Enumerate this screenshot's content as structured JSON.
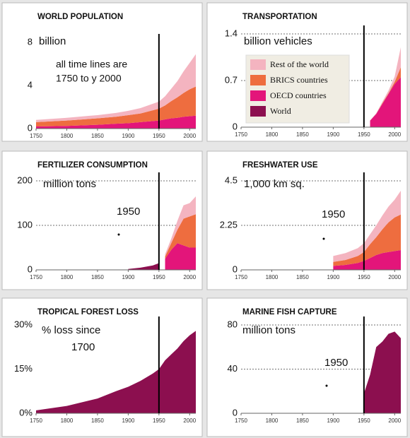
{
  "chart_data": [
    {
      "type": "area",
      "title": "WORLD POPULATION",
      "subtitle": [
        "billion"
      ],
      "annotations": [
        "all time lines are",
        "1750 to y 2000"
      ],
      "x": [
        1750,
        1800,
        1850,
        1880,
        1900,
        1920,
        1940,
        1950,
        1960,
        1970,
        1980,
        1990,
        2000,
        2010
      ],
      "series": [
        {
          "color": "#e3157a",
          "values": [
            0.2,
            0.25,
            0.35,
            0.45,
            0.5,
            0.6,
            0.7,
            0.75,
            0.85,
            0.95,
            1.0,
            1.1,
            1.15,
            1.2
          ]
        },
        {
          "color": "#ee6d3f",
          "values": [
            0.4,
            0.5,
            0.6,
            0.65,
            0.75,
            0.8,
            1.0,
            1.1,
            1.3,
            1.6,
            1.9,
            2.2,
            2.5,
            2.7
          ]
        },
        {
          "color": "#f4b4c0",
          "values": [
            0.2,
            0.25,
            0.3,
            0.35,
            0.4,
            0.5,
            0.6,
            0.65,
            0.85,
            1.15,
            1.5,
            2.0,
            2.45,
            3.0
          ]
        }
      ],
      "xlim": [
        1750,
        2010
      ],
      "xticks": [
        1750,
        1800,
        1850,
        1900,
        1950,
        2000
      ],
      "ylim": [
        0,
        8
      ],
      "yticks": [
        0,
        4,
        8
      ],
      "vline": 1950,
      "grid": false
    },
    {
      "type": "area",
      "title": "TRANSPORTATION",
      "subtitle": [
        "billion vehicles"
      ],
      "annotations": [],
      "x": [
        1750,
        1800,
        1850,
        1880,
        1900,
        1920,
        1940,
        1950,
        1960,
        1970,
        1980,
        1990,
        2000,
        2010
      ],
      "series": [
        {
          "name": "World",
          "color": "#8c0f4f",
          "values": [
            null,
            null,
            null,
            null,
            null,
            null,
            null,
            null,
            null,
            null,
            null,
            null,
            null,
            null
          ]
        },
        {
          "name": "OECD countries",
          "color": "#e3157a",
          "values": [
            null,
            null,
            null,
            null,
            null,
            null,
            null,
            null,
            0.1,
            0.2,
            0.35,
            0.5,
            0.65,
            0.75
          ]
        },
        {
          "name": "BRICS countries",
          "color": "#ee6d3f",
          "values": [
            null,
            null,
            null,
            null,
            null,
            null,
            null,
            null,
            0,
            0,
            0.01,
            0.01,
            0.03,
            0.15
          ]
        },
        {
          "name": "Rest of the world",
          "color": "#f4b4c0",
          "values": [
            null,
            null,
            null,
            null,
            null,
            null,
            null,
            null,
            0,
            0.01,
            0.02,
            0.04,
            0.08,
            0.3
          ]
        }
      ],
      "xlim": [
        1750,
        2010
      ],
      "xticks": [
        1750,
        1800,
        1850,
        1900,
        1950,
        2000
      ],
      "ylim": [
        0,
        1.4
      ],
      "yticks": [
        0,
        0.7,
        1.4
      ],
      "vline": 1950,
      "grid": true,
      "legend": "center"
    },
    {
      "type": "area",
      "title": "FERTILIZER CONSUMPTION",
      "subtitle": [
        "million tons"
      ],
      "annotations": [
        "1950"
      ],
      "x": [
        1750,
        1800,
        1850,
        1880,
        1900,
        1920,
        1940,
        1950,
        1960,
        1970,
        1980,
        1990,
        2000,
        2010
      ],
      "series": [
        {
          "color": "#8c0f4f",
          "values": [
            null,
            null,
            null,
            null,
            2,
            5,
            10,
            15,
            null,
            null,
            null,
            null,
            null,
            null
          ]
        },
        {
          "color": "#e3157a",
          "values": [
            null,
            null,
            null,
            null,
            null,
            null,
            null,
            null,
            25,
            45,
            60,
            55,
            50,
            50
          ]
        },
        {
          "color": "#ee6d3f",
          "values": [
            null,
            null,
            null,
            null,
            null,
            null,
            null,
            null,
            5,
            15,
            30,
            60,
            70,
            75
          ]
        },
        {
          "color": "#f4b4c0",
          "values": [
            null,
            null,
            null,
            null,
            null,
            null,
            null,
            null,
            5,
            10,
            20,
            30,
            30,
            40
          ]
        }
      ],
      "xlim": [
        1750,
        2010
      ],
      "xticks": [
        1750,
        1800,
        1850,
        1900,
        1950,
        2000
      ],
      "ylim": [
        0,
        200
      ],
      "yticks": [
        0,
        100,
        200
      ],
      "vline": 1950,
      "grid": true
    },
    {
      "type": "area",
      "title": "FRESHWATER USE",
      "subtitle": [
        "1,000 km sq."
      ],
      "annotations": [
        "1950"
      ],
      "x": [
        1750,
        1800,
        1850,
        1880,
        1900,
        1920,
        1940,
        1950,
        1960,
        1970,
        1980,
        1990,
        2000,
        2010
      ],
      "series": [
        {
          "color": "#e3157a",
          "values": [
            null,
            null,
            null,
            null,
            0.2,
            0.25,
            0.35,
            0.45,
            0.6,
            0.75,
            0.85,
            0.9,
            0.95,
            1.0
          ]
        },
        {
          "color": "#ee6d3f",
          "values": [
            null,
            null,
            null,
            null,
            0.2,
            0.25,
            0.35,
            0.45,
            0.7,
            0.9,
            1.2,
            1.5,
            1.7,
            1.8
          ]
        },
        {
          "color": "#f4b4c0",
          "values": [
            null,
            null,
            null,
            null,
            0.3,
            0.35,
            0.4,
            0.45,
            0.5,
            0.6,
            0.7,
            0.8,
            0.9,
            1.2
          ]
        }
      ],
      "xlim": [
        1750,
        2010
      ],
      "xticks": [
        1750,
        1800,
        1850,
        1900,
        1950,
        2000
      ],
      "ylim": [
        0,
        4.5
      ],
      "yticks": [
        0,
        2.25,
        4.5
      ],
      "vline": 1950,
      "grid": true
    },
    {
      "type": "area",
      "title": "TROPICAL FOREST LOSS",
      "subtitle": [
        "% loss since",
        "1700"
      ],
      "annotations": [],
      "x": [
        1750,
        1800,
        1850,
        1880,
        1900,
        1920,
        1940,
        1950,
        1960,
        1970,
        1980,
        1990,
        2000,
        2010
      ],
      "series": [
        {
          "color": "#8c0f4f",
          "values": [
            1,
            2.5,
            5,
            7.5,
            9,
            11,
            13.5,
            15,
            18,
            20,
            22,
            24.5,
            26.5,
            28
          ]
        }
      ],
      "xlim": [
        1750,
        2010
      ],
      "xticks": [
        1750,
        1800,
        1850,
        1900,
        1950,
        2000
      ],
      "ylim": [
        0,
        30
      ],
      "yticks": [
        {
          "value": 0,
          "label": "0%"
        },
        {
          "value": 15,
          "label": "15%"
        },
        {
          "value": 30,
          "label": "30%"
        }
      ],
      "vline": 1950,
      "grid": false
    },
    {
      "type": "area",
      "title": "MARINE FISH CAPTURE",
      "subtitle": [
        "million tons"
      ],
      "annotations": [
        "1950"
      ],
      "x": [
        1750,
        1800,
        1850,
        1880,
        1900,
        1920,
        1940,
        1950,
        1960,
        1970,
        1980,
        1990,
        2000,
        2010
      ],
      "series": [
        {
          "color": "#8c0f4f",
          "values": [
            null,
            null,
            null,
            null,
            null,
            null,
            null,
            18,
            35,
            60,
            65,
            72,
            74,
            68
          ]
        }
      ],
      "xlim": [
        1750,
        2010
      ],
      "xticks": [
        1750,
        1800,
        1850,
        1900,
        1950,
        2000
      ],
      "ylim": [
        0,
        80
      ],
      "yticks": [
        0,
        40,
        80
      ],
      "vline": 1950,
      "grid": true
    }
  ]
}
